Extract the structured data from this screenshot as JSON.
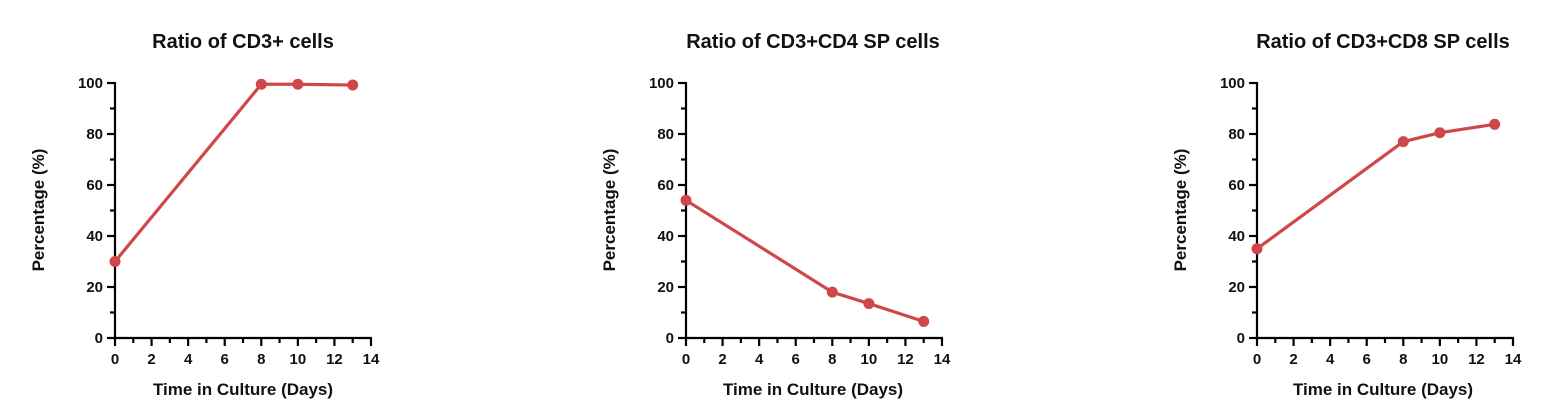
{
  "chart_data": [
    {
      "type": "line",
      "title": "Ratio of CD3+ cells",
      "xlabel": "Time in Culture (Days)",
      "ylabel": "Percentage (%)",
      "xlim": [
        0,
        14
      ],
      "ylim": [
        0,
        100
      ],
      "xticks": [
        "0",
        "2",
        "4",
        "6",
        "8",
        "10",
        "12",
        "14"
      ],
      "yticks": [
        "0",
        "20",
        "40",
        "60",
        "80",
        "100"
      ],
      "grid": false,
      "series": [
        {
          "x": [
            0,
            8,
            10,
            13
          ],
          "y": [
            30,
            99.5,
            99.5,
            99.2
          ],
          "color": "#d0474a"
        }
      ]
    },
    {
      "type": "line",
      "title": "Ratio of CD3+CD4 SP cells",
      "xlabel": "Time in Culture (Days)",
      "ylabel": "Percentage (%)",
      "xlim": [
        0,
        14
      ],
      "ylim": [
        0,
        100
      ],
      "xticks": [
        "0",
        "2",
        "4",
        "6",
        "8",
        "10",
        "12",
        "14"
      ],
      "yticks": [
        "0",
        "20",
        "40",
        "60",
        "80",
        "100"
      ],
      "grid": false,
      "series": [
        {
          "x": [
            0,
            8,
            10,
            13
          ],
          "y": [
            54,
            18,
            13.5,
            6.5
          ],
          "color": "#d0474a"
        }
      ]
    },
    {
      "type": "line",
      "title": "Ratio of CD3+CD8 SP cells",
      "xlabel": "Time in Culture (Days)",
      "ylabel": "Percentage (%)",
      "xlim": [
        0,
        14
      ],
      "ylim": [
        0,
        100
      ],
      "xticks": [
        "0",
        "2",
        "4",
        "6",
        "8",
        "10",
        "12",
        "14"
      ],
      "yticks": [
        "0",
        "20",
        "40",
        "60",
        "80",
        "100"
      ],
      "grid": false,
      "series": [
        {
          "x": [
            0,
            8,
            10,
            13
          ],
          "y": [
            35,
            77,
            80.5,
            83.8
          ],
          "color": "#d0474a"
        }
      ]
    }
  ]
}
